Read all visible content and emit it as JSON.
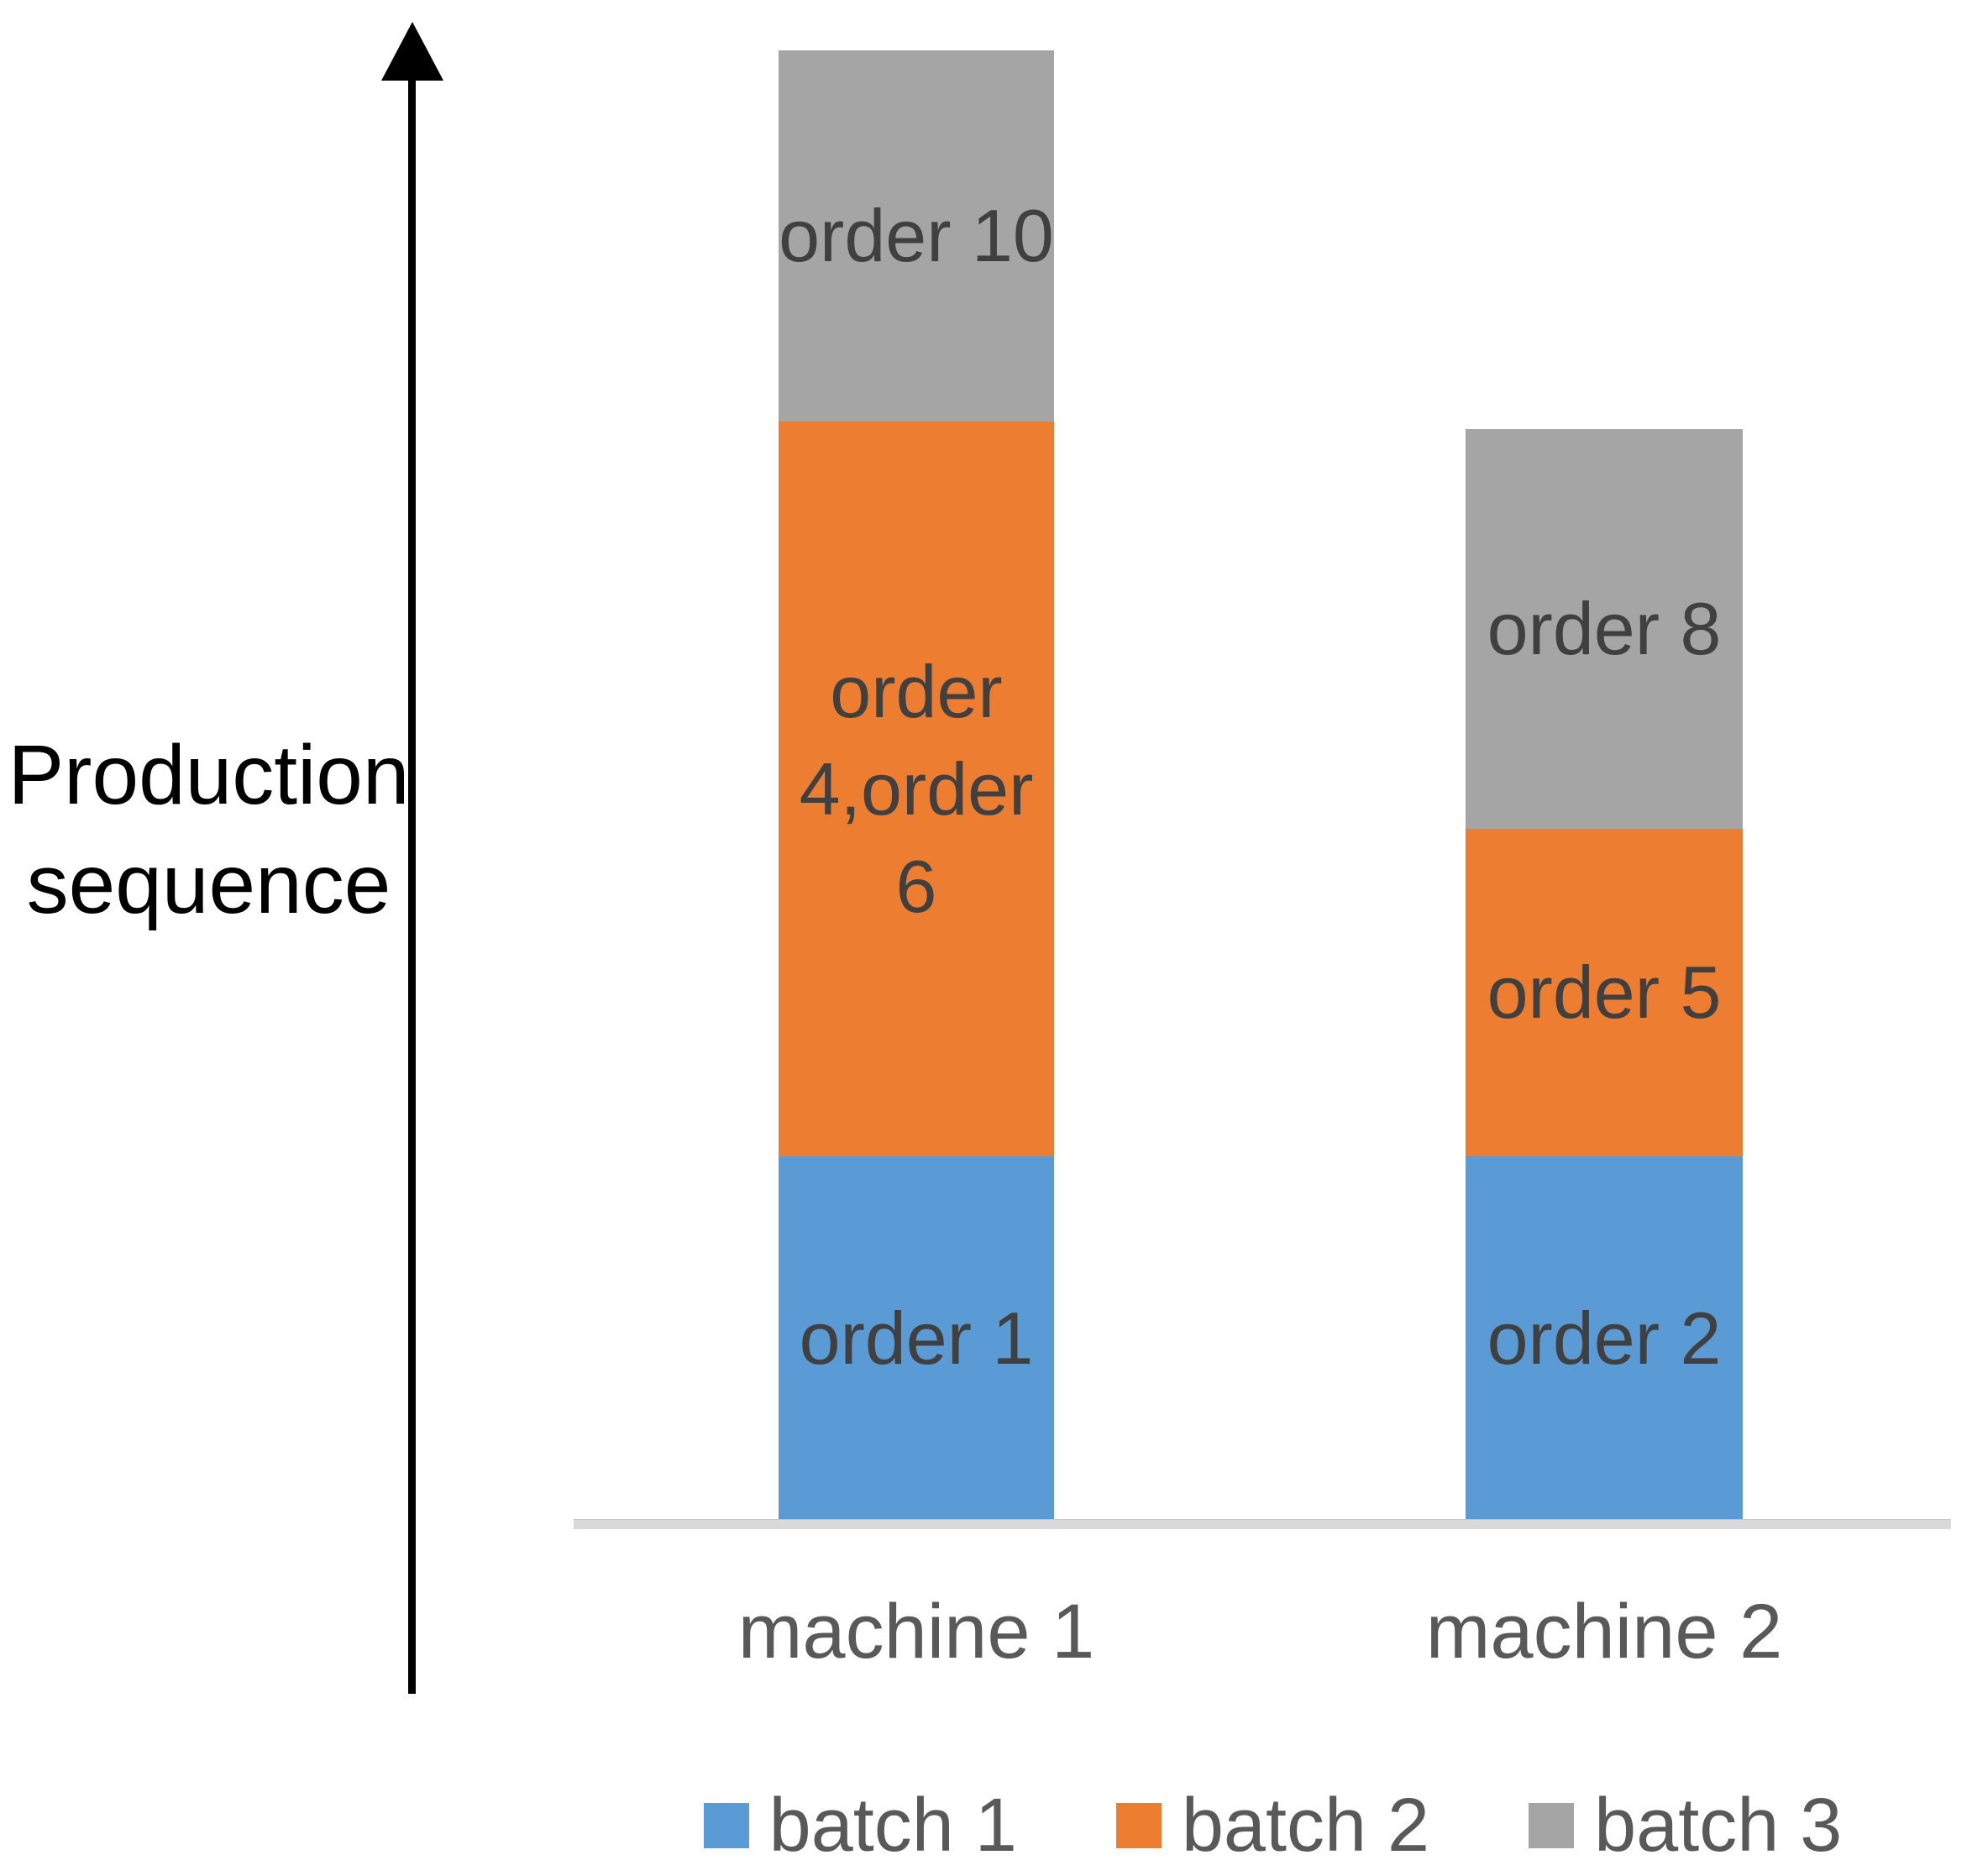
{
  "y_axis_label": "Production sequence",
  "legend": {
    "items": [
      {
        "label": "batch 1",
        "color": "#5B9BD5"
      },
      {
        "label": "batch 2",
        "color": "#ED7D31"
      },
      {
        "label": "batch 3",
        "color": "#A5A5A5"
      }
    ]
  },
  "colors": {
    "batch1_blue": "#5B9BD5",
    "batch2_orange": "#ED7D31",
    "batch3_gray": "#A5A5A5",
    "axis_line": "#D9D9D9",
    "arrow": "#000000",
    "segment_label_text": "#404040",
    "category_and_legend_text": "#595959",
    "y_axis_label_text": "#000000"
  },
  "chart_data": {
    "type": "bar",
    "stacked": true,
    "orientation": "vertical",
    "title": "",
    "xlabel": "",
    "ylabel": "Production sequence",
    "categories": [
      "machine 1",
      "machine 2"
    ],
    "series": [
      {
        "name": "batch 1",
        "color": "#5B9BD5",
        "values": [
          1.0,
          1.0
        ],
        "segment_labels": [
          "order 1",
          "order 2"
        ]
      },
      {
        "name": "batch 2",
        "color": "#ED7D31",
        "values": [
          2.02,
          0.9
        ],
        "segment_labels": [
          "order 4,order 6",
          "order 5"
        ]
      },
      {
        "name": "batch 3",
        "color": "#A5A5A5",
        "values": [
          1.02,
          1.1
        ],
        "segment_labels": [
          "order 10",
          "order 8"
        ]
      }
    ],
    "y_axis_style": "upward arrow, no ticks, no numeric scale",
    "grid": false,
    "legend_position": "bottom"
  }
}
